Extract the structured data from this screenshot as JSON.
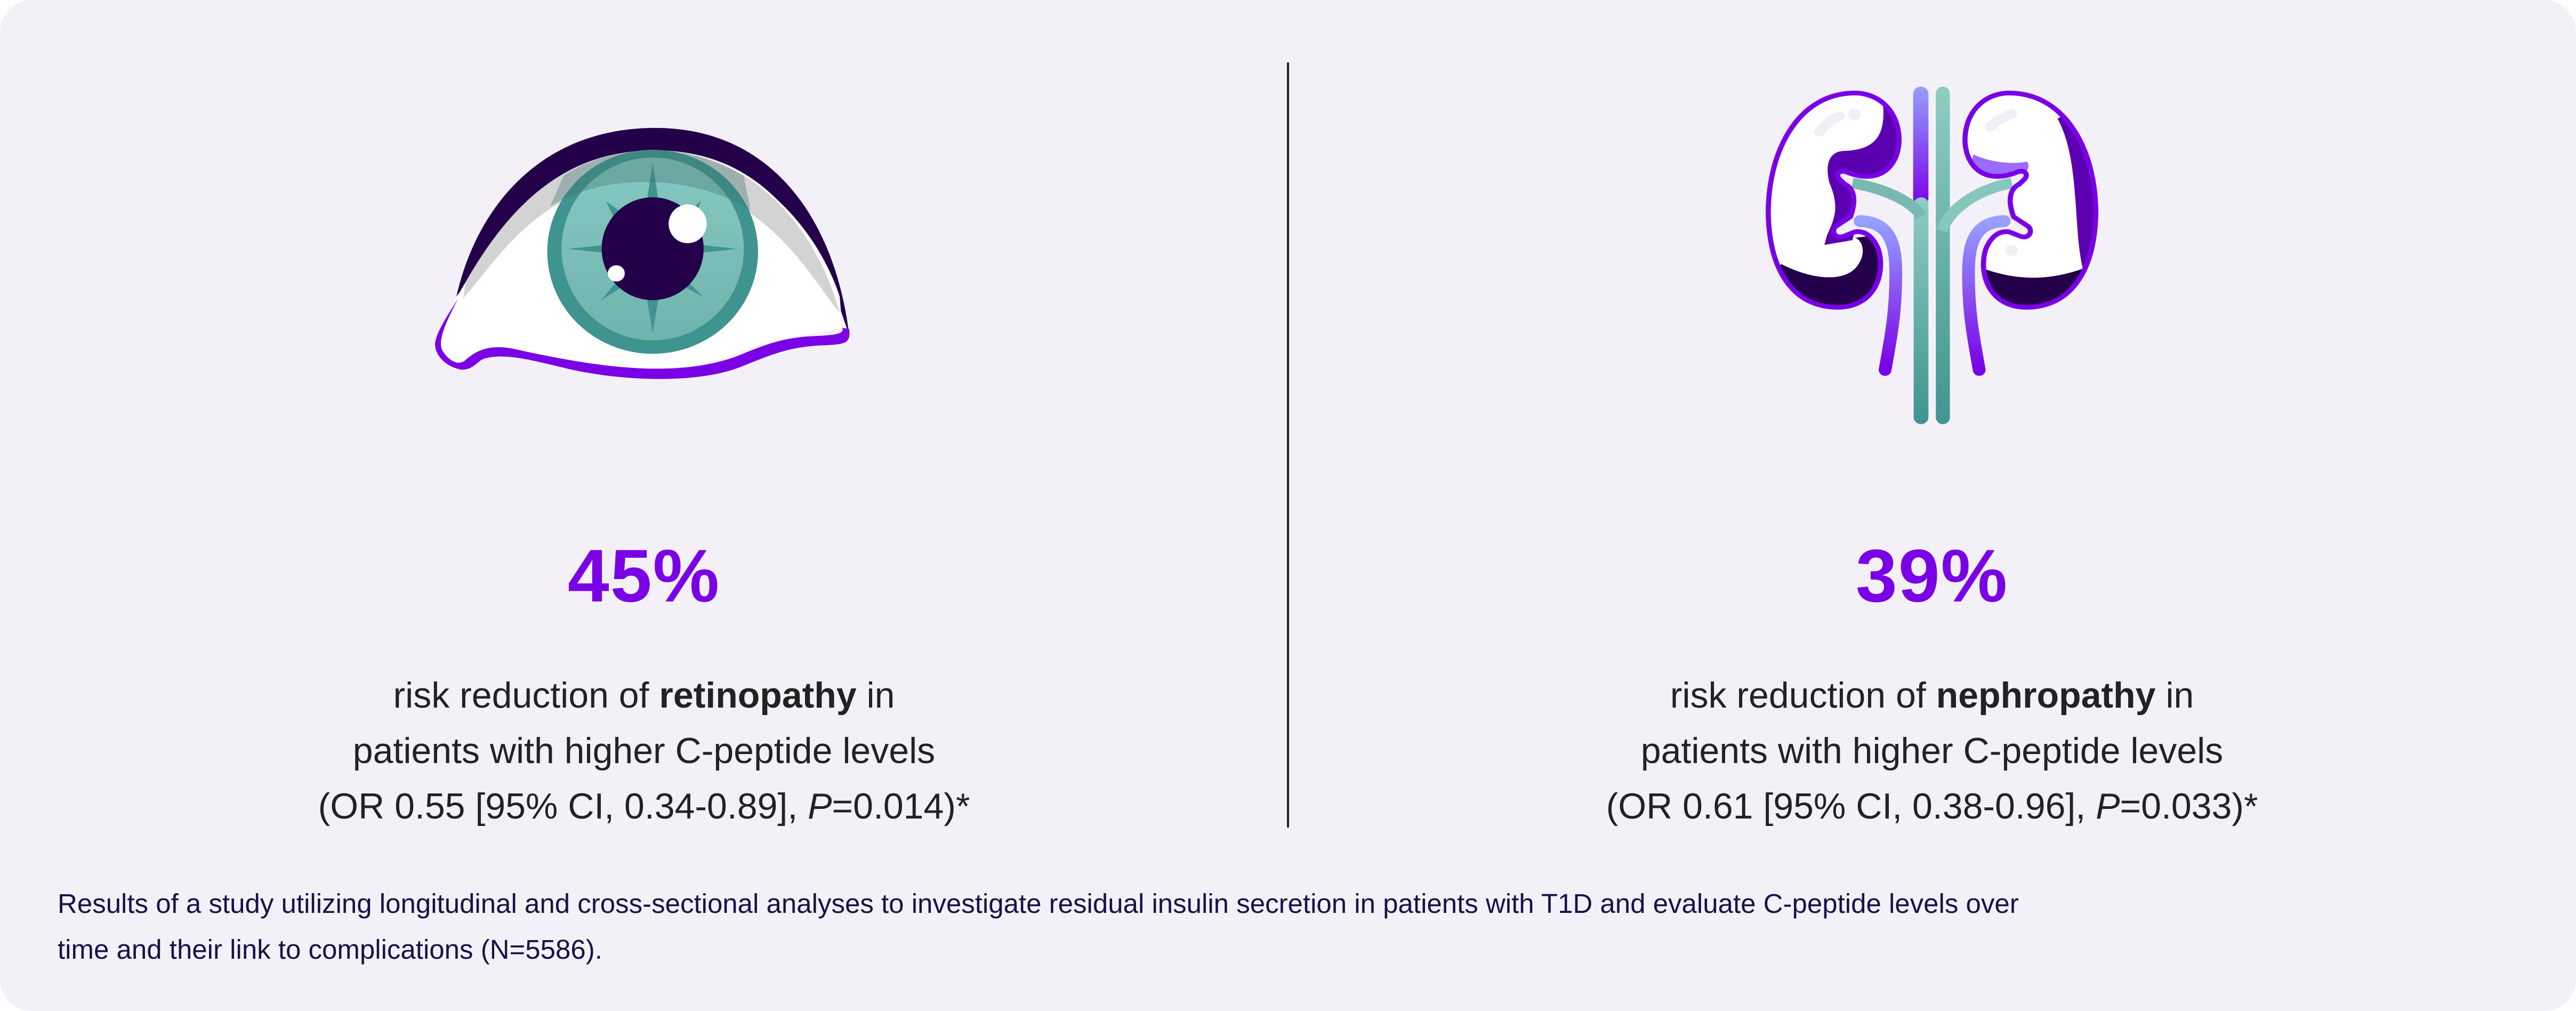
{
  "colors": {
    "accent": "#7a00e6",
    "text": "#222222",
    "footnote": "#15124a",
    "background": "#f3f1f7",
    "teal": "#40948f"
  },
  "left": {
    "icon": "eye-icon",
    "stat": "45%",
    "line1_pre": "risk reduction of ",
    "line1_bold": "retinopathy",
    "line1_post": " in",
    "line2": "patients with higher C-peptide levels",
    "line3_pre": "(OR 0.55 [95% CI, 0.34-0.89], ",
    "line3_italic": "P",
    "line3_post": "=0.014)*"
  },
  "right": {
    "icon": "kidneys-icon",
    "stat": "39%",
    "line1_pre": "risk reduction of ",
    "line1_bold": "nephropathy",
    "line1_post": " in",
    "line2": "patients with higher C-peptide levels",
    "line3_pre": "(OR 0.61 [95% CI, 0.38-0.96], ",
    "line3_italic": "P",
    "line3_post": "=0.033)*"
  },
  "footnote": {
    "line1": "Results of a study utilizing longitudinal and cross-sectional analyses to investigate residual insulin secretion in patients with T1D and evaluate C-peptide levels over",
    "line2": "time and their link to complications (N=5586)."
  }
}
